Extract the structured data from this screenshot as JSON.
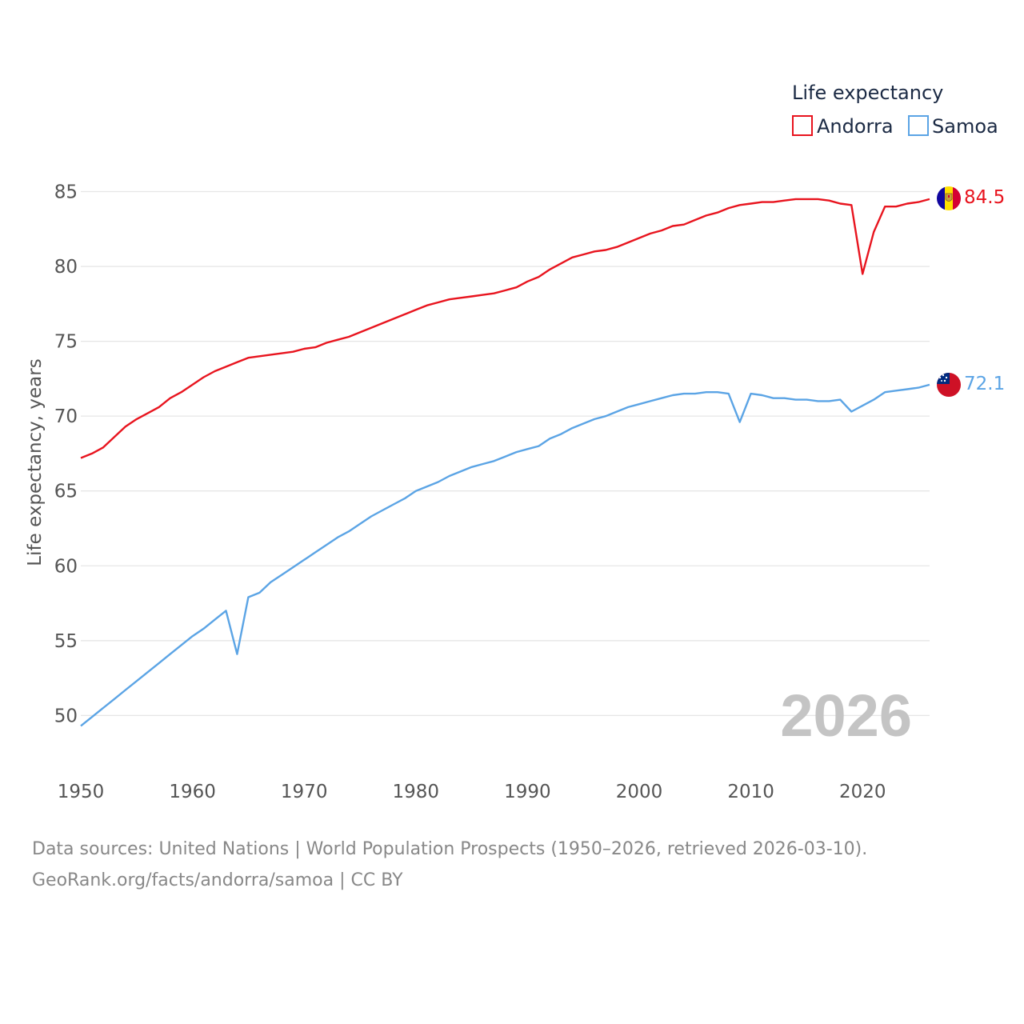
{
  "chart_data": {
    "type": "line",
    "legend_title": "Life expectancy",
    "ylabel": "Life expectancy, years",
    "xlim": [
      1950,
      2026
    ],
    "ylim": [
      47,
      87
    ],
    "yticks": [
      50,
      55,
      60,
      65,
      70,
      75,
      80,
      85
    ],
    "xticks": [
      1950,
      1960,
      1970,
      1980,
      1990,
      2000,
      2010,
      2020
    ],
    "current_year": "2026",
    "x": [
      1950,
      1951,
      1952,
      1953,
      1954,
      1955,
      1956,
      1957,
      1958,
      1959,
      1960,
      1961,
      1962,
      1963,
      1964,
      1965,
      1966,
      1967,
      1968,
      1969,
      1970,
      1971,
      1972,
      1973,
      1974,
      1975,
      1976,
      1977,
      1978,
      1979,
      1980,
      1981,
      1982,
      1983,
      1984,
      1985,
      1986,
      1987,
      1988,
      1989,
      1990,
      1991,
      1992,
      1993,
      1994,
      1995,
      1996,
      1997,
      1998,
      1999,
      2000,
      2001,
      2002,
      2003,
      2004,
      2005,
      2006,
      2007,
      2008,
      2009,
      2010,
      2011,
      2012,
      2013,
      2014,
      2015,
      2016,
      2017,
      2018,
      2019,
      2020,
      2021,
      2022,
      2023,
      2024,
      2025,
      2026
    ],
    "series": [
      {
        "name": "Andorra",
        "color": "#e8141e",
        "end_label": "84.5",
        "values": [
          67.2,
          67.5,
          67.9,
          68.6,
          69.3,
          69.8,
          70.2,
          70.6,
          71.2,
          71.6,
          72.1,
          72.6,
          73.0,
          73.3,
          73.6,
          73.9,
          74.0,
          74.1,
          74.2,
          74.3,
          74.5,
          74.6,
          74.9,
          75.1,
          75.3,
          75.6,
          75.9,
          76.2,
          76.5,
          76.8,
          77.1,
          77.4,
          77.6,
          77.8,
          77.9,
          78.0,
          78.1,
          78.2,
          78.4,
          78.6,
          79.0,
          79.3,
          79.8,
          80.2,
          80.6,
          80.8,
          81.0,
          81.1,
          81.3,
          81.6,
          81.9,
          82.2,
          82.4,
          82.7,
          82.8,
          83.1,
          83.4,
          83.6,
          83.9,
          84.1,
          84.2,
          84.3,
          84.3,
          84.4,
          84.5,
          84.5,
          84.5,
          84.4,
          84.2,
          84.1,
          79.5,
          82.3,
          84.0,
          84.0,
          84.2,
          84.3,
          84.5
        ]
      },
      {
        "name": "Samoa",
        "color": "#5ba4e5",
        "end_label": "72.1",
        "values": [
          49.3,
          49.9,
          50.5,
          51.1,
          51.7,
          52.3,
          52.9,
          53.5,
          54.1,
          54.7,
          55.3,
          55.8,
          56.4,
          57.0,
          54.1,
          57.9,
          58.2,
          58.9,
          59.4,
          59.9,
          60.4,
          60.9,
          61.4,
          61.9,
          62.3,
          62.8,
          63.3,
          63.7,
          64.1,
          64.5,
          65.0,
          65.3,
          65.6,
          66.0,
          66.3,
          66.6,
          66.8,
          67.0,
          67.3,
          67.6,
          67.8,
          68.0,
          68.5,
          68.8,
          69.2,
          69.5,
          69.8,
          70.0,
          70.3,
          70.6,
          70.8,
          71.0,
          71.2,
          71.4,
          71.5,
          71.5,
          71.6,
          71.6,
          71.5,
          69.6,
          71.5,
          71.4,
          71.2,
          71.2,
          71.1,
          71.1,
          71.0,
          71.0,
          71.1,
          70.3,
          70.7,
          71.1,
          71.6,
          71.7,
          71.8,
          71.9,
          72.1
        ]
      }
    ]
  },
  "source": {
    "line1": "Data sources: United Nations | World Population Prospects (1950–2026, retrieved 2026-03-10).",
    "line2": "GeoRank.org/facts/andorra/samoa | CC BY"
  }
}
